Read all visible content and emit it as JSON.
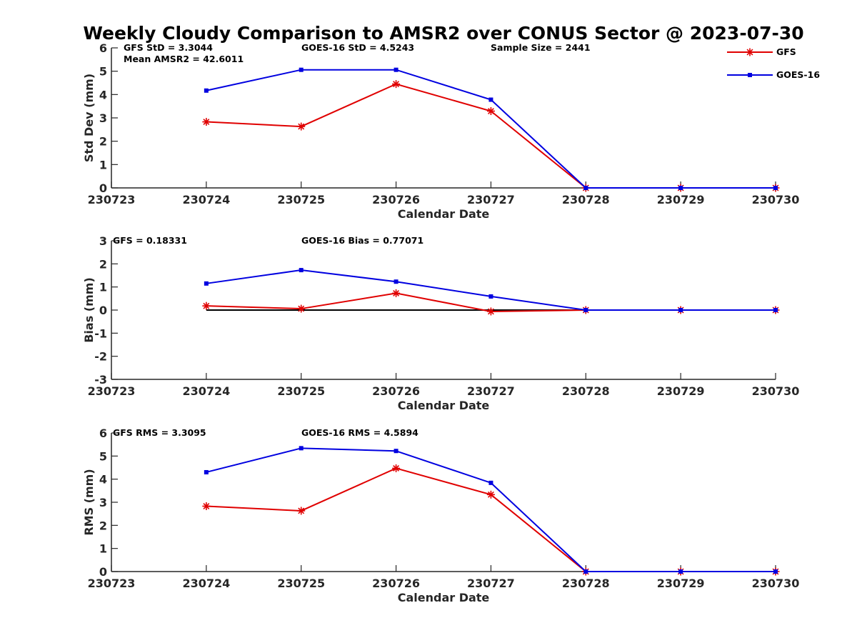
{
  "title": "Weekly Cloudy Comparison to AMSR2 over CONUS Sector @ 2023-07-30",
  "colors": {
    "gfs": "#e00000",
    "goes": "#0000e0",
    "axis": "#262626",
    "zero": "#000000"
  },
  "legend": {
    "placement": "top-right",
    "entries": [
      {
        "label": "GFS",
        "color": "#e00000",
        "marker": "asterisk"
      },
      {
        "label": "GOES-16",
        "color": "#0000e0",
        "marker": "square"
      }
    ]
  },
  "panels": [
    {
      "annotations": [
        "GFS StD = 3.3044",
        "Mean AMSR2 = 42.6011",
        "GOES-16 StD = 4.5243",
        "Sample Size = 2441"
      ]
    },
    {
      "annotations": [
        "GFS = 0.18331",
        "GOES-16 Bias  = 0.77071"
      ]
    },
    {
      "annotations": [
        "GFS RMS = 3.3095",
        "GOES-16 RMS = 4.5894"
      ]
    }
  ],
  "chart_data": [
    {
      "type": "line",
      "title": "Weekly Cloudy Comparison to AMSR2 over CONUS Sector @ 2023-07-30",
      "xlabel": "Calendar Date",
      "ylabel": "Std Dev (mm)",
      "categories": [
        "230723",
        "230724",
        "230725",
        "230726",
        "230727",
        "230728",
        "230729",
        "230730"
      ],
      "ylim": [
        0,
        6
      ],
      "yticks": [
        "0",
        "1",
        "2",
        "3",
        "4",
        "5",
        "6"
      ],
      "grid": false,
      "series": [
        {
          "name": "GFS",
          "values": [
            null,
            2.83,
            2.63,
            4.45,
            3.29,
            0,
            0,
            0
          ]
        },
        {
          "name": "GOES-16",
          "values": [
            null,
            4.17,
            5.06,
            5.06,
            3.78,
            0,
            0,
            0
          ]
        }
      ]
    },
    {
      "type": "line",
      "xlabel": "Calendar Date",
      "ylabel": "Bias (mm)",
      "categories": [
        "230723",
        "230724",
        "230725",
        "230726",
        "230727",
        "230728",
        "230729",
        "230730"
      ],
      "ylim": [
        -3,
        3
      ],
      "yticks": [
        "-3",
        "-2",
        "-1",
        "0",
        "1",
        "2",
        "3"
      ],
      "reference_line": 0,
      "grid": false,
      "series": [
        {
          "name": "GFS",
          "values": [
            null,
            0.18,
            0.06,
            0.73,
            -0.06,
            0,
            0,
            0
          ]
        },
        {
          "name": "GOES-16",
          "values": [
            null,
            1.15,
            1.73,
            1.23,
            0.59,
            0,
            0,
            0
          ]
        }
      ]
    },
    {
      "type": "line",
      "xlabel": "Calendar Date",
      "ylabel": "RMS (mm)",
      "categories": [
        "230723",
        "230724",
        "230725",
        "230726",
        "230727",
        "230728",
        "230729",
        "230730"
      ],
      "ylim": [
        0,
        6
      ],
      "yticks": [
        "0",
        "1",
        "2",
        "3",
        "4",
        "5",
        "6"
      ],
      "grid": false,
      "series": [
        {
          "name": "GFS",
          "values": [
            null,
            2.83,
            2.63,
            4.47,
            3.33,
            0,
            0,
            0
          ]
        },
        {
          "name": "GOES-16",
          "values": [
            null,
            4.3,
            5.34,
            5.22,
            3.84,
            0,
            0,
            0
          ]
        }
      ]
    }
  ]
}
